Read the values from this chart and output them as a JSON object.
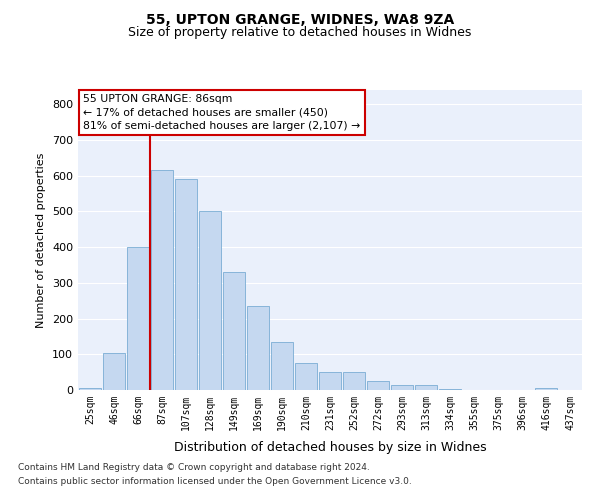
{
  "title1": "55, UPTON GRANGE, WIDNES, WA8 9ZA",
  "title2": "Size of property relative to detached houses in Widnes",
  "xlabel": "Distribution of detached houses by size in Widnes",
  "ylabel": "Number of detached properties",
  "footnote1": "Contains HM Land Registry data © Crown copyright and database right 2024.",
  "footnote2": "Contains public sector information licensed under the Open Government Licence v3.0.",
  "bar_labels": [
    "25sqm",
    "46sqm",
    "66sqm",
    "87sqm",
    "107sqm",
    "128sqm",
    "149sqm",
    "169sqm",
    "190sqm",
    "210sqm",
    "231sqm",
    "252sqm",
    "272sqm",
    "293sqm",
    "313sqm",
    "334sqm",
    "355sqm",
    "375sqm",
    "396sqm",
    "416sqm",
    "437sqm"
  ],
  "bar_values": [
    5,
    105,
    400,
    615,
    590,
    500,
    330,
    235,
    135,
    75,
    50,
    50,
    25,
    15,
    15,
    3,
    0,
    0,
    0,
    5,
    0
  ],
  "bar_color": "#c5d8f0",
  "bar_edge_color": "#7aadd4",
  "background_color": "#eaf0fb",
  "grid_color": "#ffffff",
  "annotation_line1": "55 UPTON GRANGE: 86sqm",
  "annotation_line2": "← 17% of detached houses are smaller (450)",
  "annotation_line3": "81% of semi-detached houses are larger (2,107) →",
  "annotation_box_color": "#ffffff",
  "annotation_box_edge_color": "#cc0000",
  "vline_color": "#cc0000",
  "ylim": [
    0,
    840
  ],
  "yticks": [
    0,
    100,
    200,
    300,
    400,
    500,
    600,
    700,
    800
  ]
}
